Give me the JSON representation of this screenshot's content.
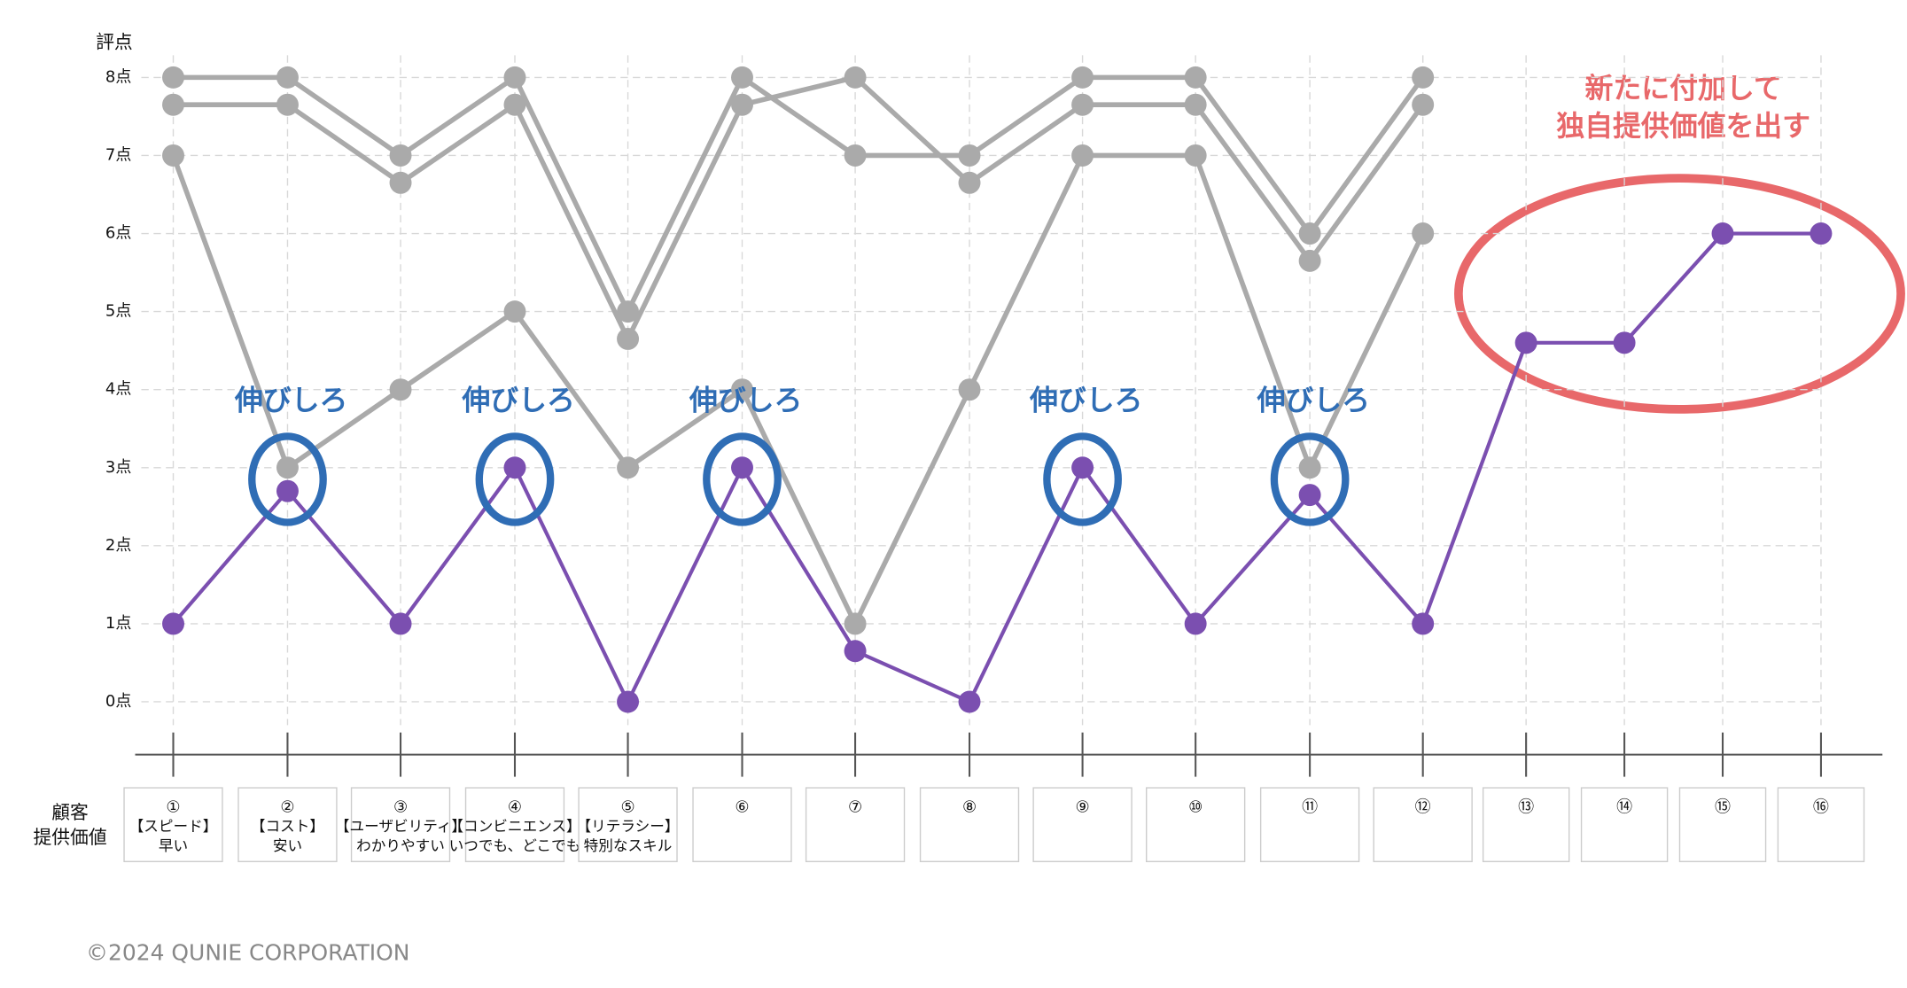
{
  "chart_data": {
    "type": "line",
    "y_label": "評点",
    "categories": [
      [
        "①",
        "【スピード】",
        "早い"
      ],
      [
        "②",
        "【コスト】",
        "安い"
      ],
      [
        "③",
        "【ユーザビリティ】",
        "わかりやすい"
      ],
      [
        "④",
        "【コンビニエンス】",
        "いつでも、どこでも"
      ],
      [
        "⑤",
        "【リテラシー】",
        "特別なスキル"
      ],
      [
        "⑥"
      ],
      [
        "⑦"
      ],
      [
        "⑧"
      ],
      [
        "⑨"
      ],
      [
        "⑩"
      ],
      [
        "⑪"
      ],
      [
        "⑫"
      ],
      [
        "⑬"
      ],
      [
        "⑭"
      ],
      [
        "⑮"
      ],
      [
        "⑯"
      ]
    ],
    "row_label": [
      "顧客",
      "提供価値"
    ],
    "series": [
      {
        "color": "#aaaaaa",
        "values": [
          8,
          8,
          7,
          8,
          5,
          8,
          7,
          7,
          8,
          8,
          6,
          8,
          null,
          null,
          null,
          null
        ]
      },
      {
        "color": "#aaaaaa",
        "values": [
          7.65,
          7.65,
          6.65,
          7.65,
          4.65,
          7.65,
          8,
          6.65,
          7.65,
          7.65,
          5.65,
          7.65,
          null,
          null,
          null,
          null
        ]
      },
      {
        "color": "#aaaaaa",
        "values": [
          7,
          3,
          4,
          5,
          3,
          4,
          1,
          4,
          7,
          7,
          3,
          6,
          null,
          null,
          null,
          null
        ]
      },
      {
        "color": "#7b4fb0",
        "values": [
          1,
          2.7,
          1,
          3,
          0,
          3,
          0.65,
          0,
          3,
          1,
          2.65,
          1,
          4.6,
          4.6,
          6,
          6
        ]
      }
    ],
    "ylim": [
      0,
      8
    ],
    "yticks": [
      {
        "value": 0,
        "label": "0点"
      },
      {
        "value": 1,
        "label": "1点"
      },
      {
        "value": 2,
        "label": "2点"
      },
      {
        "value": 3,
        "label": "3点"
      },
      {
        "value": 4,
        "label": "4点"
      },
      {
        "value": 5,
        "label": "5点"
      },
      {
        "value": 6,
        "label": "6点"
      },
      {
        "value": 7,
        "label": "7点"
      },
      {
        "value": 8,
        "label": "8点"
      }
    ],
    "grid": true,
    "annotations": [
      "伸びしろ",
      "伸びしろ",
      "伸びしろ",
      "伸びしろ",
      "伸びしろ"
    ],
    "callout": [
      "新たに付加して",
      "独自提供価値を出す"
    ],
    "footer": "©2024 QUNIE CORPORATION"
  }
}
